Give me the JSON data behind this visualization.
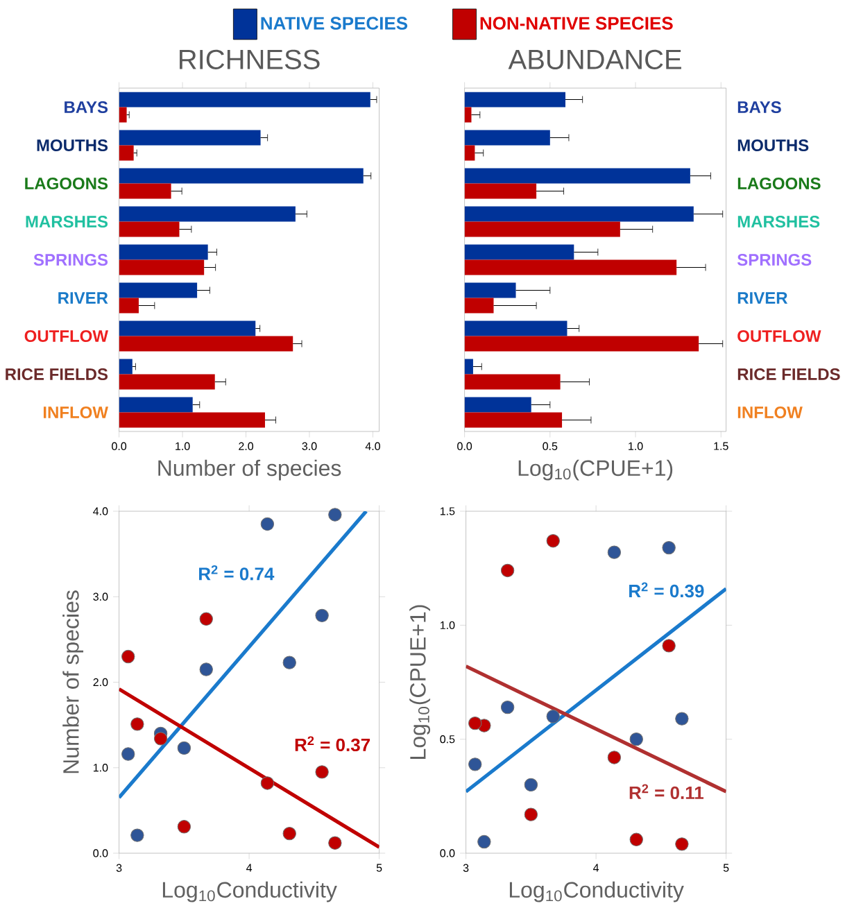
{
  "chart_data": [
    {
      "type": "bar",
      "orientation": "horizontal",
      "title": "RICHNESS",
      "xlabel": "Number of species",
      "categories": [
        "BAYS",
        "MOUTHS",
        "LAGOONS",
        "MARSHES",
        "SPRINGS",
        "RIVER",
        "OUTFLOW",
        "RICE FIELDS",
        "INFLOW"
      ],
      "series": [
        {
          "name": "NATIVE SPECIES",
          "color": "#003399",
          "values": [
            3.96,
            2.23,
            3.85,
            2.78,
            1.4,
            1.23,
            2.15,
            0.21,
            1.16
          ],
          "errors": [
            [
              3.96,
              4.06
            ],
            [
              2.23,
              2.34
            ],
            [
              3.85,
              3.97
            ],
            [
              2.78,
              2.96
            ],
            [
              1.4,
              1.54
            ],
            [
              1.23,
              1.43
            ],
            [
              2.15,
              2.22
            ],
            [
              0.21,
              0.26
            ],
            [
              1.16,
              1.27
            ]
          ]
        },
        {
          "name": "NON-NATIVE SPECIES",
          "color": "#c00000",
          "values": [
            0.12,
            0.23,
            0.82,
            0.95,
            1.34,
            0.31,
            2.74,
            1.51,
            2.3
          ],
          "errors": [
            [
              0.12,
              0.16
            ],
            [
              0.23,
              0.28
            ],
            [
              0.82,
              0.99
            ],
            [
              0.95,
              1.14
            ],
            [
              1.34,
              1.52
            ],
            [
              0.31,
              0.56
            ],
            [
              2.74,
              2.88
            ],
            [
              1.51,
              1.68
            ],
            [
              2.3,
              2.47
            ]
          ]
        }
      ],
      "xlim": [
        0,
        4.1
      ],
      "xticks": [
        {
          "value": 0,
          "label": "0.0"
        },
        {
          "value": 1,
          "label": "1.0"
        },
        {
          "value": 2,
          "label": "2.0"
        },
        {
          "value": 3,
          "label": "3.0"
        },
        {
          "value": 4,
          "label": "4.0"
        }
      ],
      "legend": "top"
    },
    {
      "type": "bar",
      "orientation": "horizontal",
      "title": "ABUNDANCE",
      "xlabel": "Log$_{10}$(CPUE+1)",
      "categories": [
        "BAYS",
        "MOUTHS",
        "LAGOONS",
        "MARSHES",
        "SPRINGS",
        "RIVER",
        "OUTFLOW",
        "RICE FIELDS",
        "INFLOW"
      ],
      "series": [
        {
          "color": "#003399",
          "values": [
            0.59,
            0.5,
            1.32,
            1.34,
            0.64,
            0.3,
            0.6,
            0.05,
            0.39
          ],
          "errors": [
            [
              0.59,
              0.69
            ],
            [
              0.5,
              0.61
            ],
            [
              1.32,
              1.44
            ],
            [
              1.34,
              1.51
            ],
            [
              0.64,
              0.78
            ],
            [
              0.3,
              0.5
            ],
            [
              0.6,
              0.67
            ],
            [
              0.05,
              0.1
            ],
            [
              0.39,
              0.5
            ]
          ]
        },
        {
          "color": "#c00000",
          "values": [
            0.04,
            0.06,
            0.42,
            0.91,
            1.24,
            0.17,
            1.37,
            0.56,
            0.57
          ],
          "errors": [
            [
              0.04,
              0.09
            ],
            [
              0.06,
              0.11
            ],
            [
              0.42,
              0.58
            ],
            [
              0.91,
              1.1
            ],
            [
              1.24,
              1.41
            ],
            [
              0.17,
              0.42
            ],
            [
              1.37,
              1.51
            ],
            [
              0.56,
              0.73
            ],
            [
              0.57,
              0.74
            ]
          ]
        }
      ],
      "xlim": [
        0,
        1.53
      ],
      "xticks": [
        {
          "value": 0,
          "label": "0.0"
        },
        {
          "value": 0.5,
          "label": "0.5"
        },
        {
          "value": 1,
          "label": "1.0"
        },
        {
          "value": 1.5,
          "label": "1.5"
        }
      ]
    },
    {
      "type": "scatter",
      "xlabel": "Log$_{10}$Conductivity",
      "ylabel": "Number of species",
      "marker": "circle",
      "x": [
        4.66,
        4.31,
        4.14,
        4.56,
        3.32,
        3.5,
        3.67,
        3.14,
        3.07
      ],
      "series": [
        {
          "color": "#2f5597",
          "values": [
            3.96,
            2.23,
            3.85,
            2.78,
            1.4,
            1.23,
            2.15,
            0.21,
            1.16
          ]
        },
        {
          "color": "#c00000",
          "values": [
            0.12,
            0.23,
            0.82,
            0.95,
            1.34,
            0.31,
            2.74,
            1.51,
            2.3
          ]
        },
        {
          "type": "line",
          "marker": "none",
          "color": "#1a7acc",
          "x": [
            3,
            4.9
          ],
          "values": [
            0.65,
            4.0
          ]
        },
        {
          "type": "line",
          "marker": "none",
          "color": "#c00000",
          "x": [
            3,
            5
          ],
          "values": [
            1.92,
            0.07
          ]
        }
      ],
      "annotations": [
        "R$^{2}$ = 0.74",
        "R$^{2}$ = 0.37"
      ],
      "xlim": [
        3,
        5
      ],
      "xticks": [
        3,
        4,
        5
      ],
      "ylim": [
        0,
        4
      ],
      "yticks": [
        {
          "value": 0,
          "label": "0.0"
        },
        {
          "value": 1,
          "label": "1.0"
        },
        {
          "value": 2,
          "label": "2.0"
        },
        {
          "value": 3,
          "label": "3.0"
        },
        {
          "value": 4,
          "label": "4.0"
        }
      ]
    },
    {
      "type": "scatter",
      "xlabel": "Log$_{10}$Conductivity",
      "ylabel": "Log$_{10}$(CPUE+1)",
      "marker": "circle",
      "x": [
        4.66,
        4.31,
        4.14,
        4.56,
        3.32,
        3.5,
        3.67,
        3.14,
        3.07
      ],
      "series": [
        {
          "color": "#2f5597",
          "values": [
            0.59,
            0.5,
            1.32,
            1.34,
            0.64,
            0.3,
            0.6,
            0.05,
            0.39
          ]
        },
        {
          "color": "#c00000",
          "values": [
            0.04,
            0.06,
            0.42,
            0.91,
            1.24,
            0.17,
            1.37,
            0.56,
            0.57
          ]
        },
        {
          "type": "line",
          "marker": "none",
          "color": "#1a7acc",
          "x": [
            3,
            5
          ],
          "values": [
            0.27,
            1.16
          ]
        },
        {
          "type": "line",
          "marker": "none",
          "color": "#b03030",
          "x": [
            3,
            5
          ],
          "values": [
            0.82,
            0.27
          ]
        }
      ],
      "annotations": [
        "R$^{2}$ = 0.39",
        "R$^{2}$ = 0.11"
      ],
      "xlim": [
        3,
        5
      ],
      "xticks": [
        3,
        4,
        5
      ],
      "ylim": [
        0,
        1.5
      ],
      "yticks": [
        {
          "value": 0,
          "label": "0.0"
        },
        {
          "value": 0.5,
          "label": "0.5"
        },
        {
          "value": 1,
          "label": "1.0"
        },
        {
          "value": 1.5,
          "label": "1.5"
        }
      ]
    }
  ]
}
